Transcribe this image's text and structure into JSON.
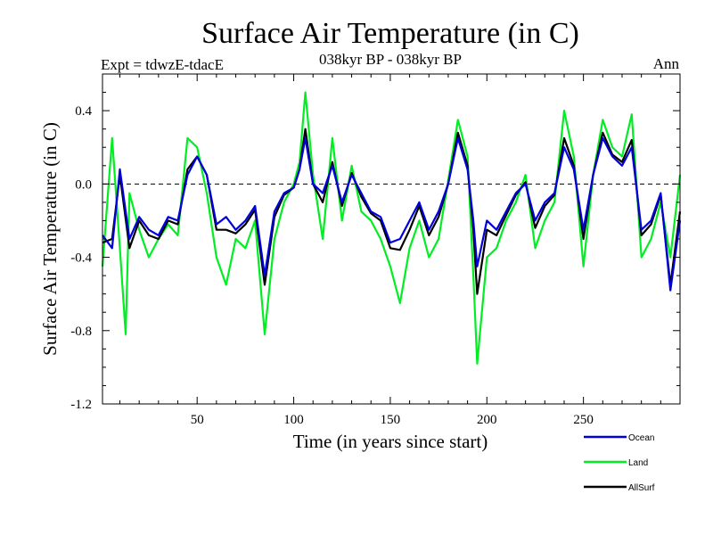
{
  "header": {
    "title": "Surface Air Temperature (in C)",
    "subtitle": "038kyr BP - 038kyr BP",
    "expt": "Expt = tdwzE-tdacE",
    "season": "Ann"
  },
  "colors": {
    "ocean": "#0000dd",
    "land": "#00ee22",
    "allsurf": "#000000",
    "zero_line": "#000000"
  },
  "chart_data": {
    "type": "line",
    "title": "Surface Air Temperature (in C)",
    "subtitle": "038kyr BP - 038kyr BP",
    "xlabel": "Time (in years since start)",
    "ylabel": "Surface Air Temperature (in C)",
    "xlim": [
      1,
      300
    ],
    "ylim": [
      -1.2,
      0.6
    ],
    "xticks": [
      50,
      100,
      150,
      200,
      250
    ],
    "xtick_labels": [
      "50",
      "100",
      "150",
      "200",
      "250"
    ],
    "yticks": [
      -1.2,
      -0.8,
      -0.4,
      0.0,
      0.4
    ],
    "ytick_labels": [
      "-1.2",
      "-0.8",
      "-0.4",
      "0.0",
      "0.4"
    ],
    "reference_line": 0.0,
    "grid": false,
    "legend_position": "bottom-right below plot",
    "series": [
      {
        "name": "Ocean",
        "color": "#0000dd",
        "x": [
          1,
          6,
          10,
          15,
          20,
          25,
          30,
          35,
          40,
          45,
          50,
          55,
          60,
          65,
          70,
          75,
          80,
          85,
          90,
          95,
          100,
          103,
          106,
          110,
          115,
          120,
          125,
          130,
          135,
          140,
          145,
          150,
          155,
          160,
          165,
          170,
          175,
          180,
          185,
          190,
          193,
          195,
          200,
          205,
          210,
          215,
          220,
          225,
          230,
          235,
          240,
          245,
          250,
          255,
          260,
          265,
          270,
          275,
          280,
          285,
          290,
          295,
          300
        ],
        "values": [
          -0.28,
          -0.35,
          0.08,
          -0.3,
          -0.18,
          -0.25,
          -0.28,
          -0.18,
          -0.2,
          0.05,
          0.15,
          0.05,
          -0.22,
          -0.18,
          -0.25,
          -0.2,
          -0.12,
          -0.5,
          -0.15,
          -0.05,
          -0.02,
          0.08,
          0.25,
          0.0,
          -0.05,
          0.1,
          -0.1,
          0.05,
          -0.05,
          -0.15,
          -0.18,
          -0.32,
          -0.3,
          -0.2,
          -0.1,
          -0.25,
          -0.15,
          0.0,
          0.25,
          0.08,
          -0.2,
          -0.45,
          -0.2,
          -0.25,
          -0.15,
          -0.05,
          0.0,
          -0.2,
          -0.1,
          -0.05,
          0.2,
          0.08,
          -0.25,
          0.05,
          0.25,
          0.15,
          0.1,
          0.2,
          -0.25,
          -0.2,
          -0.05,
          -0.58,
          -0.2
        ]
      },
      {
        "name": "Land",
        "color": "#00ee22",
        "x": [
          1,
          6,
          10,
          13,
          15,
          20,
          25,
          30,
          35,
          40,
          45,
          50,
          55,
          60,
          65,
          70,
          75,
          80,
          85,
          90,
          95,
          100,
          103,
          106,
          110,
          115,
          120,
          125,
          130,
          135,
          140,
          145,
          150,
          155,
          160,
          165,
          170,
          175,
          180,
          185,
          190,
          193,
          195,
          200,
          205,
          210,
          215,
          220,
          225,
          230,
          235,
          240,
          245,
          250,
          255,
          260,
          265,
          270,
          275,
          280,
          285,
          290,
          295,
          300
        ],
        "values": [
          -0.45,
          0.25,
          -0.35,
          -0.82,
          -0.05,
          -0.25,
          -0.4,
          -0.3,
          -0.22,
          -0.28,
          0.25,
          0.2,
          -0.05,
          -0.4,
          -0.55,
          -0.3,
          -0.35,
          -0.2,
          -0.82,
          -0.3,
          -0.1,
          0.0,
          0.12,
          0.5,
          0.05,
          -0.3,
          0.25,
          -0.2,
          0.1,
          -0.15,
          -0.2,
          -0.3,
          -0.45,
          -0.65,
          -0.35,
          -0.2,
          -0.4,
          -0.3,
          0.02,
          0.35,
          0.15,
          -0.5,
          -0.98,
          -0.4,
          -0.35,
          -0.2,
          -0.1,
          0.05,
          -0.35,
          -0.2,
          -0.1,
          0.4,
          0.15,
          -0.45,
          0.05,
          0.35,
          0.2,
          0.15,
          0.38,
          -0.4,
          -0.3,
          -0.1,
          -0.4,
          0.05
        ]
      },
      {
        "name": "AllSurf",
        "color": "#000000",
        "x": [
          1,
          6,
          10,
          15,
          20,
          25,
          30,
          35,
          40,
          45,
          50,
          55,
          60,
          65,
          70,
          75,
          80,
          85,
          90,
          95,
          100,
          103,
          106,
          110,
          115,
          120,
          125,
          130,
          135,
          140,
          145,
          150,
          155,
          160,
          165,
          170,
          175,
          180,
          185,
          190,
          193,
          195,
          200,
          205,
          210,
          215,
          220,
          225,
          230,
          235,
          240,
          245,
          250,
          255,
          260,
          265,
          270,
          275,
          280,
          285,
          290,
          295,
          300
        ],
        "values": [
          -0.32,
          -0.3,
          0.05,
          -0.35,
          -0.2,
          -0.28,
          -0.3,
          -0.2,
          -0.22,
          0.08,
          0.15,
          0.05,
          -0.25,
          -0.25,
          -0.27,
          -0.22,
          -0.14,
          -0.55,
          -0.18,
          -0.06,
          -0.02,
          0.08,
          0.3,
          0.0,
          -0.1,
          0.12,
          -0.12,
          0.06,
          -0.07,
          -0.16,
          -0.2,
          -0.35,
          -0.36,
          -0.25,
          -0.12,
          -0.28,
          -0.18,
          0.0,
          0.28,
          0.1,
          -0.25,
          -0.6,
          -0.25,
          -0.28,
          -0.17,
          -0.06,
          0.01,
          -0.24,
          -0.12,
          -0.06,
          0.25,
          0.1,
          -0.3,
          0.05,
          0.28,
          0.16,
          0.12,
          0.24,
          -0.28,
          -0.22,
          -0.06,
          -0.55,
          -0.15
        ]
      }
    ]
  }
}
